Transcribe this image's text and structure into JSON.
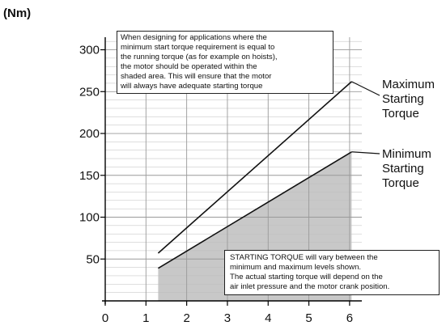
{
  "unit_label": "(Nm)",
  "notes": {
    "top": [
      "When designing for applications where the",
      "minimum start torque requirement is equal to",
      "the running torque (as for example on hoists),",
      "the motor should be operated within the",
      "shaded area. This will ensure that the motor",
      "will always have adequate starting torque"
    ],
    "bottom": [
      "STARTING TORQUE will vary between the",
      "minimum and maximum levels shown.",
      "The actual starting torque will depend on the",
      "air inlet pressure and the motor crank position."
    ]
  },
  "colors": {
    "shade": "#c8c8c8",
    "grid": "#bdbdbd",
    "line": "#111111",
    "axis": "#000000"
  },
  "chart_data": {
    "type": "line",
    "title": "",
    "xlabel": "",
    "ylabel": "(Nm)",
    "xlim": [
      0,
      6.3
    ],
    "ylim": [
      0,
      315
    ],
    "x_ticks": [
      0,
      1,
      2,
      3,
      4,
      5,
      6
    ],
    "y_ticks": [
      50,
      100,
      150,
      200,
      250,
      300
    ],
    "grid": true,
    "series": [
      {
        "name": "Maximum Starting Torque",
        "label_lines": [
          "Maximum",
          "Starting",
          "Torque"
        ],
        "x": [
          1.3,
          6.05
        ],
        "y": [
          57,
          262
        ]
      },
      {
        "name": "Minimum Starting Torque",
        "label_lines": [
          "Minimum",
          "Starting",
          "Torque"
        ],
        "x": [
          1.3,
          6.05
        ],
        "y": [
          39,
          178
        ]
      }
    ],
    "shaded_region": "under Minimum Starting Torque"
  }
}
